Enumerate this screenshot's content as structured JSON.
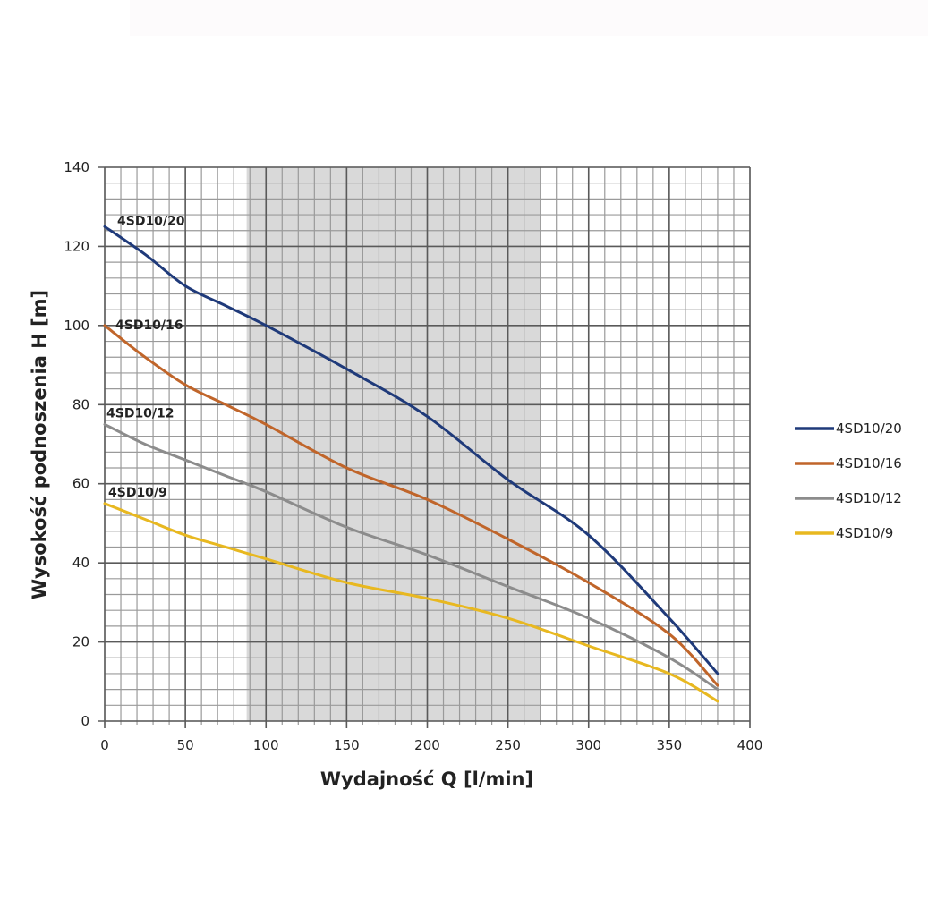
{
  "chart_data": {
    "type": "line",
    "title": "",
    "xlabel": "Wydajność Q [l/min]",
    "ylabel": "Wysokość podnoszenia H [m]",
    "xlim": [
      0,
      400
    ],
    "ylim": [
      0,
      140
    ],
    "xticks": [
      "0",
      "50",
      "100",
      "150",
      "200",
      "250",
      "300",
      "350",
      "400"
    ],
    "yticks": [
      "0",
      "20",
      "40",
      "60",
      "80",
      "100",
      "120",
      "140"
    ],
    "x_tick_values": [
      0,
      50,
      100,
      150,
      200,
      250,
      300,
      350,
      400
    ],
    "y_tick_values": [
      0,
      20,
      40,
      60,
      80,
      100,
      120,
      140
    ],
    "x_minor_step": 10,
    "y_minor_step": 4,
    "grid": true,
    "shaded_range": [
      88,
      270
    ],
    "legend_position": "right",
    "x": [
      0,
      50,
      100,
      150,
      200,
      250,
      300,
      350,
      380
    ],
    "series": [
      {
        "name": "4SD10/20",
        "label": "4SD10/20",
        "color": "#1f3a7a",
        "x": [
          0,
          25,
          50,
          75,
          100,
          150,
          200,
          250,
          300,
          350,
          380
        ],
        "values": [
          125,
          118,
          110,
          105,
          100,
          89,
          77,
          61,
          47,
          26,
          12
        ]
      },
      {
        "name": "4SD10/16",
        "label": "4SD10/16",
        "color": "#c0652a",
        "x": [
          0,
          25,
          50,
          75,
          100,
          150,
          200,
          250,
          300,
          350,
          380
        ],
        "values": [
          100,
          92,
          85,
          80,
          75,
          64,
          56,
          46,
          35,
          22,
          9
        ]
      },
      {
        "name": "4SD10/12",
        "label": "4SD10/12",
        "color": "#8c8c8c",
        "x": [
          0,
          25,
          50,
          75,
          100,
          150,
          200,
          250,
          300,
          350,
          380
        ],
        "values": [
          75,
          70,
          66,
          62,
          58,
          49,
          42,
          34,
          26,
          16,
          8
        ]
      },
      {
        "name": "4SD10/9",
        "label": "4SD10/9",
        "color": "#e8b820",
        "x": [
          0,
          25,
          50,
          75,
          100,
          150,
          200,
          250,
          300,
          350,
          380
        ],
        "values": [
          55,
          51,
          47,
          44,
          41,
          35,
          31,
          26,
          19,
          12,
          5
        ]
      }
    ]
  }
}
